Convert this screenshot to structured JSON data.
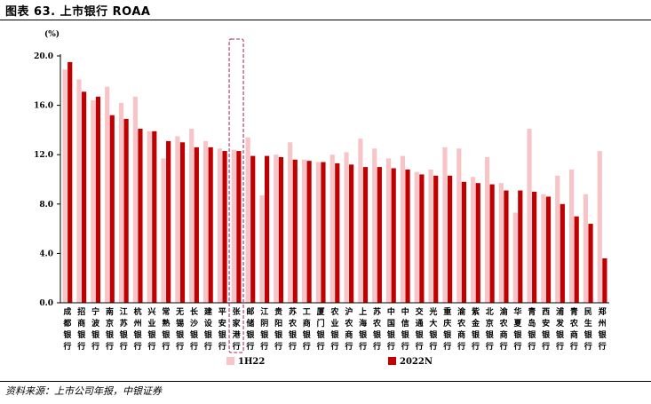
{
  "figure": {
    "title": "图表 63. 上市银行 ROAA",
    "source": "资料来源：上市公司年报，中银证券"
  },
  "chart_data": {
    "type": "bar",
    "ylabel": "(%)",
    "ylim": [
      0,
      20
    ],
    "yticks": [
      "0.0",
      "4.0",
      "8.0",
      "12.0",
      "16.0",
      "20.0"
    ],
    "grid": false,
    "legend_position": "bottom",
    "highlighted_category": "张家港行",
    "colors": {
      "1H22": "#f7c5c8",
      "2022N": "#c00000",
      "highlight_box": "#c0507d"
    },
    "categories": [
      "成都银行",
      "招商银行",
      "宁波银行",
      "南京银行",
      "江苏银行",
      "杭州银行",
      "兴业银行",
      "常熟银行",
      "无锡银行",
      "长沙银行",
      "建设银行",
      "平安银行",
      "张家港行",
      "邮储银行",
      "江阴银行",
      "贵阳银行",
      "苏农银行",
      "工商银行",
      "厦门银行",
      "农业银行",
      "沪农商行",
      "上海银行",
      "苏农银行",
      "中国银行",
      "中信银行",
      "交通银行",
      "光大银行",
      "重庆银行",
      "渝农商行",
      "紫金银行",
      "北京银行",
      "渝农商行",
      "华夏银行",
      "青岛银行",
      "西安银行",
      "浦发银行",
      "青农商行",
      "民生银行",
      "郑州银行"
    ],
    "series": [
      {
        "name": "1H22",
        "values": [
          18.9,
          18.1,
          16.4,
          17.5,
          16.2,
          16.7,
          13.9,
          11.7,
          13.5,
          14.1,
          13.1,
          12.5,
          12.4,
          13.4,
          8.7,
          12.0,
          13.0,
          11.6,
          11.4,
          12.0,
          12.2,
          13.3,
          12.5,
          11.7,
          11.9,
          10.6,
          10.8,
          12.6,
          12.5,
          10.2,
          11.8,
          9.7,
          7.3,
          14.1,
          8.8,
          10.3,
          10.8,
          8.8,
          12.3
        ]
      },
      {
        "name": "2022N",
        "values": [
          19.5,
          17.1,
          16.7,
          15.2,
          14.9,
          14.1,
          13.9,
          13.1,
          13.0,
          12.6,
          12.6,
          12.3,
          12.3,
          11.9,
          11.9,
          11.8,
          11.6,
          11.5,
          11.4,
          11.3,
          11.2,
          11.0,
          11.0,
          10.9,
          10.8,
          10.4,
          10.3,
          10.3,
          9.8,
          9.7,
          9.6,
          9.1,
          9.1,
          9.0,
          8.6,
          8.0,
          7.0,
          6.4,
          3.6
        ]
      }
    ]
  }
}
